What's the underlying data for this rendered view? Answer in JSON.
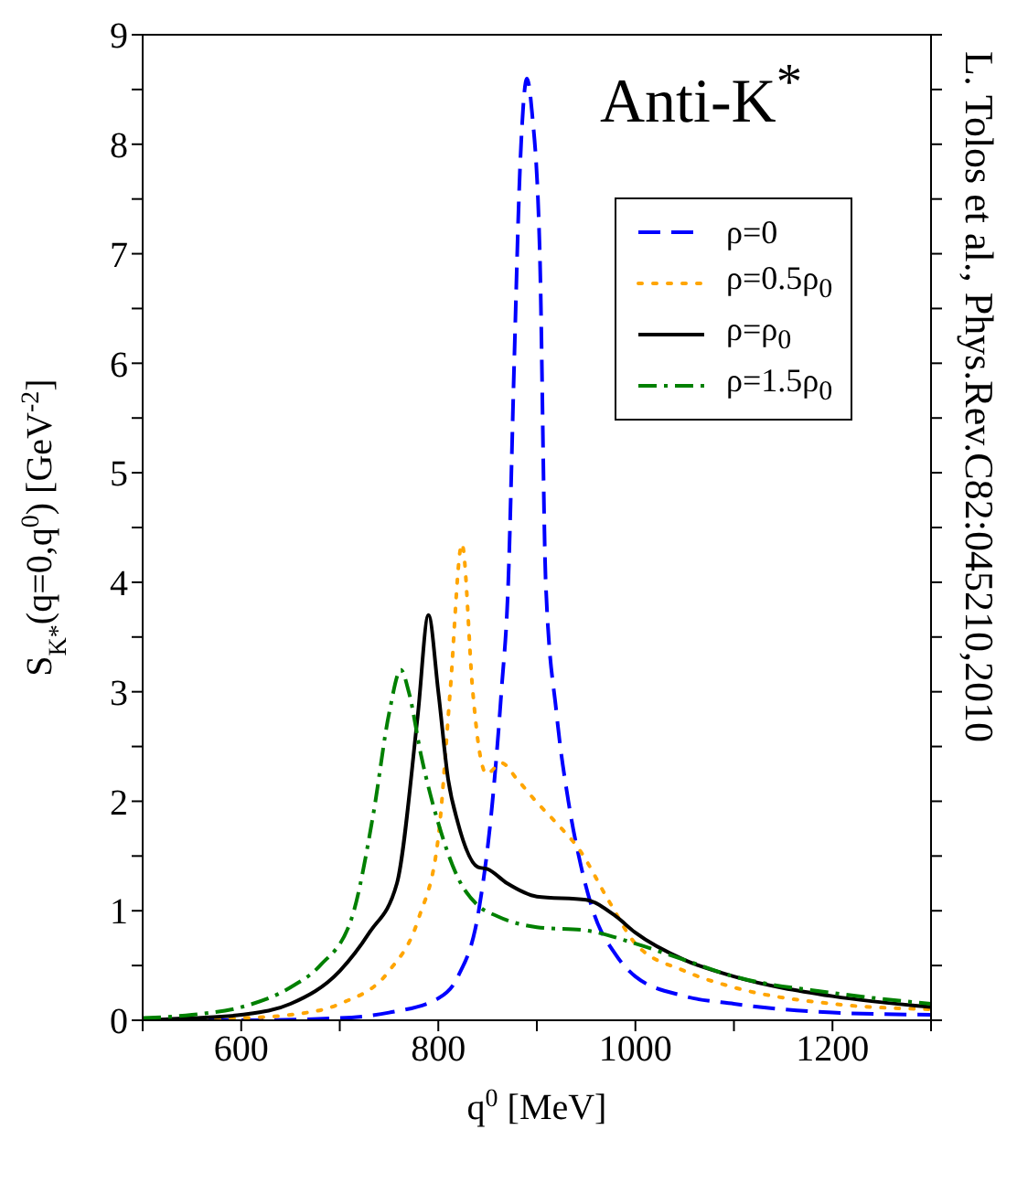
{
  "chart_data": {
    "type": "line",
    "xlabel": "q$^{0}$ [MeV]",
    "ylabel": "S$_{K*}$(q=0,q$^{0}$) [GeV$^{-2}$]",
    "annotations": [
      "Anti-K$^{*}$",
      "L. Tolos et al., Phys.Rev.C82:045210,2010"
    ],
    "xlim": [
      500,
      1300
    ],
    "xticks": [
      {
        "value": 500,
        "label": null
      },
      600,
      {
        "value": 700,
        "label": null
      },
      800,
      {
        "value": 900,
        "label": null
      },
      1000,
      {
        "value": 1100,
        "label": null
      },
      1200,
      {
        "value": 1300,
        "label": null
      }
    ],
    "ylim": [
      0,
      9
    ],
    "yticks": [
      0,
      {
        "value": 0.5,
        "label": null
      },
      1,
      {
        "value": 1.5,
        "label": null
      },
      2,
      {
        "value": 2.5,
        "label": null
      },
      3,
      {
        "value": 3.5,
        "label": null
      },
      4,
      {
        "value": 4.5,
        "label": null
      },
      5,
      {
        "value": 5.5,
        "label": null
      },
      6,
      {
        "value": 6.5,
        "label": null
      },
      7,
      {
        "value": 7.5,
        "label": null
      },
      8,
      {
        "value": 8.5,
        "label": null
      },
      9
    ],
    "legend": "top right",
    "marker": "none",
    "series": [
      {
        "name": "ρ=0",
        "color": "#0000ff",
        "line_style": "dashed",
        "x": [
          500,
          600,
          700,
          750,
          800,
          820,
          841,
          855,
          864,
          871,
          877,
          883,
          890,
          895,
          903,
          909,
          920,
          932,
          945,
          957,
          980,
          1000,
          1050,
          1100,
          1200,
          1300
        ],
        "values": [
          0,
          0,
          0.02,
          0.07,
          0.2,
          0.4,
          1.0,
          2.0,
          3.0,
          4.0,
          6.0,
          7.8,
          8.6,
          8.3,
          7.0,
          4.0,
          2.8,
          2.0,
          1.4,
          1.0,
          0.6,
          0.4,
          0.22,
          0.15,
          0.07,
          0.05
        ]
      },
      {
        "name": "ρ=0.5ρ$_{0}$",
        "color": "#ffa500",
        "line_style": "dotted",
        "x": [
          500,
          600,
          650,
          700,
          750,
          780,
          800,
          812,
          824,
          835,
          841,
          849,
          864,
          880,
          899,
          920,
          943,
          973,
          1000,
          1050,
          1100,
          1200,
          1300
        ],
        "values": [
          0,
          0.02,
          0.05,
          0.15,
          0.45,
          0.93,
          1.67,
          3.0,
          4.35,
          3.0,
          2.5,
          2.25,
          2.35,
          2.2,
          2.0,
          1.8,
          1.56,
          1.09,
          0.7,
          0.45,
          0.3,
          0.15,
          0.1
        ]
      },
      {
        "name": "ρ=ρ$_{0}$",
        "color": "#000000",
        "line_style": "solid",
        "x": [
          500,
          550,
          600,
          650,
          700,
          730,
          758,
          779,
          790,
          800,
          810,
          820,
          840,
          850,
          870,
          900,
          950,
          980,
          1000,
          1050,
          1100,
          1200,
          1300
        ],
        "values": [
          0,
          0.02,
          0.05,
          0.15,
          0.45,
          0.8,
          1.25,
          2.77,
          3.7,
          3.0,
          2.2,
          1.8,
          1.4,
          1.38,
          1.25,
          1.13,
          1.1,
          0.95,
          0.8,
          0.55,
          0.4,
          0.22,
          0.12
        ]
      },
      {
        "name": "ρ=1.5ρ$_{0}$",
        "color": "#008000",
        "line_style": "dashdot",
        "x": [
          500,
          550,
          600,
          650,
          680,
          712,
          734,
          750,
          762,
          770,
          783,
          800,
          820,
          840,
          860,
          900,
          950,
          1000,
          1050,
          1100,
          1200,
          1300
        ],
        "values": [
          0.02,
          0.05,
          0.12,
          0.3,
          0.5,
          0.93,
          1.88,
          2.8,
          3.2,
          3.0,
          2.4,
          1.8,
          1.3,
          1.05,
          0.95,
          0.85,
          0.82,
          0.7,
          0.55,
          0.4,
          0.25,
          0.15
        ]
      }
    ]
  }
}
